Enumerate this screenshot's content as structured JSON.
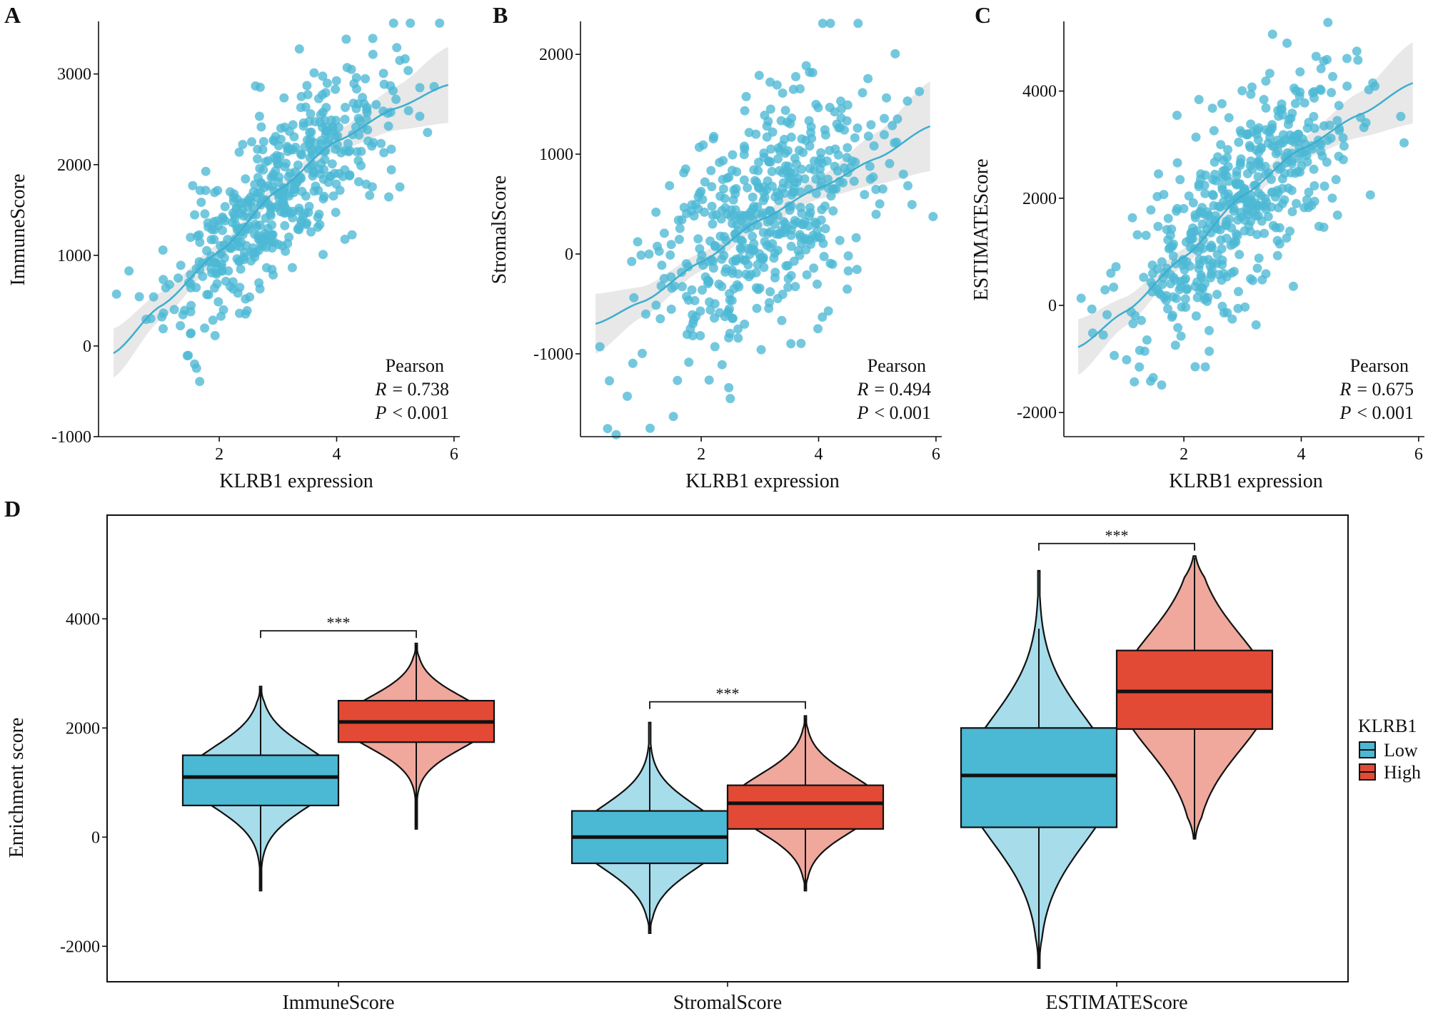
{
  "colors": {
    "low": "#4BB8D4",
    "low_light": "#A7DCEA",
    "high": "#E24A36",
    "high_light": "#F0A89C",
    "point": "#4DB8D5",
    "fit_line": "#3DAECF",
    "ci_band": "#E6E6E6"
  },
  "chart_data": [
    {
      "panel": "A",
      "type": "scatter",
      "xlabel": "KLRB1 expression",
      "ylabel": "ImmuneScore",
      "xlim": [
        0.15,
        6.05
      ],
      "ylim": [
        -1000,
        3580
      ],
      "xticks": [
        2,
        4,
        6
      ],
      "yticks": [
        -1000,
        0,
        1000,
        2000,
        3000
      ],
      "fit": {
        "x": [
          0.2,
          1,
          2,
          3,
          4,
          5,
          5.9
        ],
        "y": [
          -80,
          440,
          1040,
          1720,
          2260,
          2620,
          2880
        ]
      },
      "ci_half_width": [
        270,
        150,
        90,
        75,
        110,
        240,
        420
      ],
      "point_model": {
        "count": 500,
        "x_mean": 3.0,
        "x_sd": 0.95,
        "resid_sd": 440,
        "seed": 11
      },
      "stats": {
        "method": "Pearson",
        "r_label": "R",
        "r": "= 0.738",
        "p_label": "P",
        "p": "< 0.001"
      }
    },
    {
      "panel": "B",
      "type": "scatter",
      "xlabel": "KLRB1 expression",
      "ylabel": "StromalScore",
      "xlim": [
        0.15,
        6.05
      ],
      "ylim": [
        -1830,
        2330
      ],
      "xticks": [
        2,
        4,
        6
      ],
      "yticks": [
        -1000,
        0,
        1000,
        2000
      ],
      "fit": {
        "x": [
          0.2,
          1,
          2,
          3,
          4,
          5,
          5.9
        ],
        "y": [
          -700,
          -480,
          -80,
          340,
          660,
          960,
          1280
        ]
      },
      "ci_half_width": [
        300,
        150,
        90,
        75,
        110,
        260,
        450
      ],
      "point_model": {
        "count": 500,
        "x_mean": 3.0,
        "x_sd": 0.95,
        "resid_sd": 570,
        "seed": 23
      },
      "stats": {
        "method": "Pearson",
        "r_label": "R",
        "r": "= 0.494",
        "p_label": "P",
        "p": "< 0.001"
      }
    },
    {
      "panel": "C",
      "type": "scatter",
      "xlabel": "KLRB1 expression",
      "ylabel": "ESTIMATEScore",
      "xlim": [
        0.15,
        6.05
      ],
      "ylim": [
        -2450,
        5300
      ],
      "xticks": [
        2,
        4,
        6
      ],
      "yticks": [
        -2000,
        0,
        2000,
        4000
      ],
      "fit": {
        "x": [
          0.2,
          1,
          2,
          3,
          4,
          5,
          5.9
        ],
        "y": [
          -780,
          -120,
          900,
          2050,
          2920,
          3560,
          4150
        ]
      },
      "ci_half_width": [
        520,
        270,
        160,
        130,
        190,
        420,
        760
      ],
      "point_model": {
        "count": 500,
        "x_mean": 3.0,
        "x_sd": 0.95,
        "resid_sd": 880,
        "seed": 37
      },
      "stats": {
        "method": "Pearson",
        "r_label": "R",
        "r": "= 0.675",
        "p_label": "P",
        "p": "< 0.001"
      }
    },
    {
      "panel": "D",
      "type": "violin-box",
      "ylabel": "Enrichment score",
      "ylim": [
        -2650,
        5900
      ],
      "yticks": [
        -2000,
        0,
        2000,
        4000
      ],
      "categories": [
        "ImmuneScore",
        "StromalScore",
        "ESTIMATEScore"
      ],
      "legend": {
        "title": "KLRB1",
        "items": [
          "Low",
          "High"
        ],
        "position": "right"
      },
      "groups": [
        {
          "category": "ImmuneScore",
          "group": "Low",
          "q1": 580,
          "median": 1100,
          "q3": 1500,
          "whisker_low": -950,
          "whisker_high": 2730,
          "violin_min": -980,
          "violin_max": 2760,
          "mode": 1100,
          "spread": 560
        },
        {
          "category": "ImmuneScore",
          "group": "High",
          "q1": 1740,
          "median": 2110,
          "q3": 2500,
          "whisker_low": 180,
          "whisker_high": 3520,
          "violin_min": 150,
          "violin_max": 3550,
          "mode": 2100,
          "spread": 470
        },
        {
          "category": "StromalScore",
          "group": "Low",
          "q1": -480,
          "median": 0,
          "q3": 480,
          "whisker_low": -1720,
          "whisker_high": 1650,
          "violin_min": -1760,
          "violin_max": 2100,
          "mode": 0,
          "spread": 580
        },
        {
          "category": "StromalScore",
          "group": "High",
          "q1": 150,
          "median": 620,
          "q3": 950,
          "whisker_low": -950,
          "whisker_high": 2180,
          "violin_min": -980,
          "violin_max": 2220,
          "mode": 620,
          "spread": 520
        },
        {
          "category": "ESTIMATEScore",
          "group": "Low",
          "q1": 180,
          "median": 1130,
          "q3": 2000,
          "whisker_low": -2380,
          "whisker_high": 3820,
          "violin_min": -2400,
          "violin_max": 4880,
          "mode": 1050,
          "spread": 1150
        },
        {
          "category": "ESTIMATEScore",
          "group": "High",
          "q1": 1980,
          "median": 2670,
          "q3": 3420,
          "whisker_low": -20,
          "whisker_high": 5120,
          "violin_min": -30,
          "violin_max": 5150,
          "mode": 2650,
          "spread": 1050
        }
      ],
      "significance": [
        {
          "category": "ImmuneScore",
          "label": "***",
          "y": 3780
        },
        {
          "category": "StromalScore",
          "label": "***",
          "y": 2480
        },
        {
          "category": "ESTIMATEScore",
          "label": "***",
          "y": 5380
        }
      ]
    }
  ]
}
